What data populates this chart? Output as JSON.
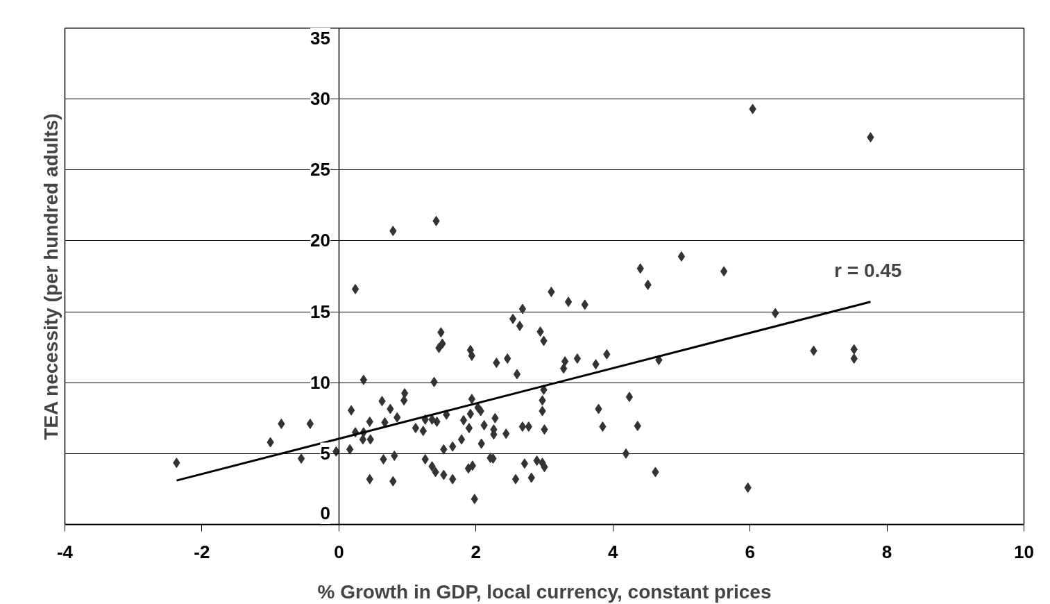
{
  "chart_data": {
    "type": "scatter",
    "xlabel": "% Growth in GDP, local currency, constant prices",
    "ylabel": "TEA necessity (per hundred adults)",
    "xlim": [
      -4,
      10
    ],
    "xticks": [
      -4,
      -2,
      0,
      2,
      4,
      6,
      8,
      10
    ],
    "ylim": [
      0,
      35
    ],
    "yticks": [
      0,
      5,
      10,
      15,
      20,
      25,
      30,
      35
    ],
    "grid": "y",
    "annotations": [
      "r = 0.45"
    ],
    "series": [
      {
        "marker": "diamond",
        "color": "#333333",
        "x": [
          -2.37,
          -1.0,
          -0.84,
          -0.42,
          -0.55,
          -0.04,
          0.16,
          0.18,
          0.36,
          0.24,
          0.36,
          0.35,
          0.46,
          0.45,
          0.45,
          0.63,
          0.65,
          0.67,
          0.75,
          0.85,
          0.79,
          0.81,
          0.96,
          0.95,
          1.12,
          1.23,
          1.26,
          1.26,
          1.36,
          1.43,
          1.39,
          1.36,
          1.41,
          1.53,
          1.66,
          1.53,
          1.66,
          1.57,
          1.49,
          1.51,
          1.46,
          0.24,
          0.79,
          1.42,
          4.51,
          3.1,
          3.35,
          3.59,
          2.68,
          2.54,
          2.64,
          2.94,
          2.99,
          1.92,
          1.94,
          2.3,
          2.46,
          2.6,
          3.3,
          3.28,
          3.48,
          3.75,
          3.91,
          4.67,
          2.99,
          2.97,
          2.97,
          1.94,
          2.03,
          2.07,
          1.92,
          1.82,
          2.28,
          1.9,
          2.12,
          2.26,
          2.26,
          2.44,
          1.79,
          2.08,
          2.68,
          2.77,
          3.0,
          3.79,
          4.24,
          3.85,
          4.36,
          4.19,
          4.62,
          2.21,
          2.25,
          1.95,
          1.89,
          2.71,
          2.89,
          2.97,
          3.0,
          2.58,
          2.81,
          1.98,
          5.0,
          4.4,
          5.62,
          6.37,
          6.93,
          7.52,
          7.52,
          5.97,
          6.04,
          7.76
        ],
        "values": [
          4.35,
          5.8,
          7.1,
          7.1,
          4.65,
          5.15,
          5.3,
          8.05,
          10.2,
          6.5,
          6.5,
          6.0,
          6.0,
          7.25,
          3.2,
          8.7,
          4.6,
          7.2,
          8.15,
          7.55,
          3.05,
          4.85,
          9.25,
          8.75,
          6.8,
          6.6,
          7.4,
          4.6,
          7.4,
          7.25,
          10.05,
          4.1,
          3.7,
          3.5,
          3.2,
          5.3,
          5.5,
          7.75,
          13.55,
          12.75,
          12.45,
          16.6,
          20.7,
          21.4,
          16.9,
          16.4,
          15.7,
          15.5,
          15.2,
          14.5,
          14.0,
          13.6,
          12.95,
          12.3,
          11.9,
          11.4,
          11.7,
          10.6,
          11.5,
          11.0,
          11.7,
          11.3,
          12.0,
          11.6,
          9.5,
          8.75,
          8.0,
          8.85,
          8.25,
          8.0,
          7.8,
          7.35,
          7.5,
          6.8,
          7.0,
          6.7,
          6.35,
          6.4,
          6.0,
          5.7,
          6.9,
          6.9,
          6.7,
          8.15,
          9.0,
          6.9,
          6.95,
          5.0,
          3.7,
          4.7,
          4.65,
          4.15,
          3.95,
          4.3,
          4.5,
          4.35,
          4.05,
          3.2,
          3.3,
          1.8,
          18.9,
          18.05,
          17.85,
          14.9,
          12.25,
          12.35,
          11.7,
          2.6,
          29.3,
          27.3
        ]
      },
      {
        "type": "line",
        "color": "#000000",
        "x": [
          -2.37,
          7.76
        ],
        "values": [
          3.1,
          15.7
        ]
      }
    ]
  }
}
